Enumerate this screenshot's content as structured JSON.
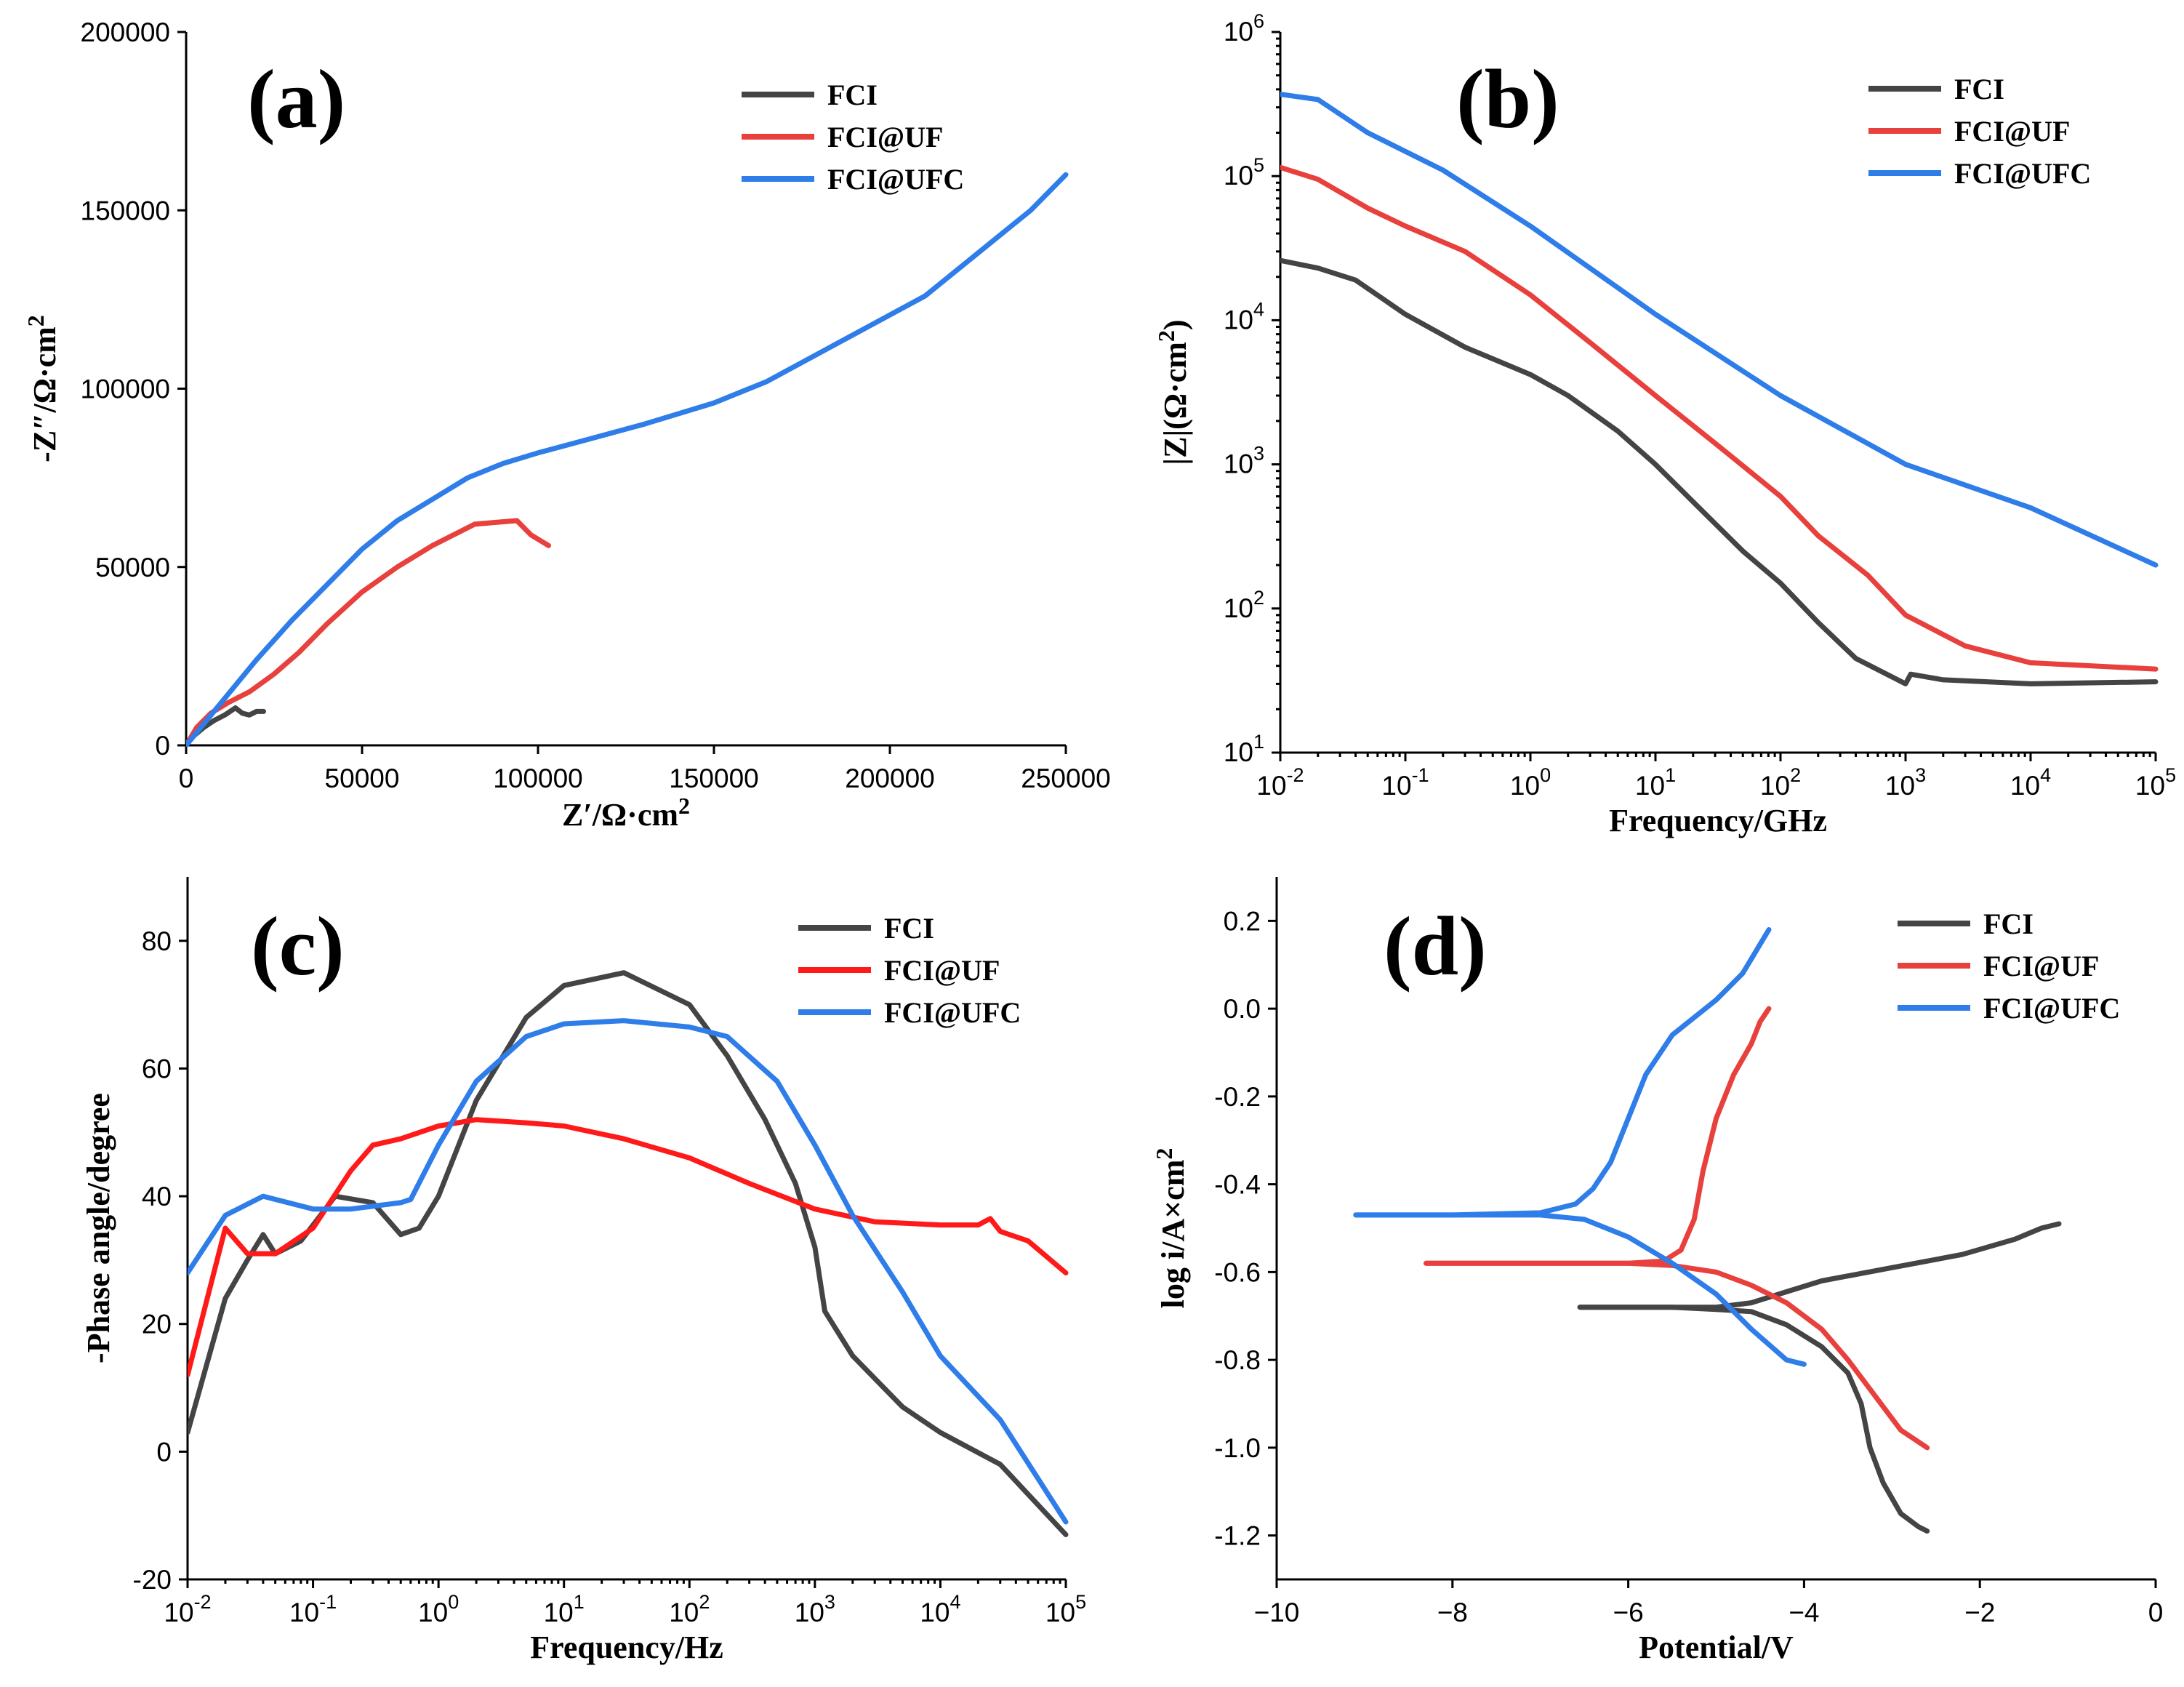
{
  "chart_data": [
    {
      "id": "a",
      "type": "line",
      "panel_label": "(a)",
      "title": "",
      "xlabel": "Z′/Ω·cm2",
      "ylabel": "-Z″/Ω·cm2",
      "xscale": "linear",
      "yscale": "linear",
      "xlim": [
        0,
        250000
      ],
      "ylim": [
        0,
        200000
      ],
      "xticks": [
        0,
        50000,
        100000,
        150000,
        200000,
        250000
      ],
      "yticks": [
        0,
        50000,
        100000,
        150000,
        200000
      ],
      "xtick_labels": [
        "0",
        "50000",
        "100000",
        "150000",
        "200000",
        "250000"
      ],
      "ytick_labels": [
        "0",
        "50000",
        "100000",
        "150000",
        "200000"
      ],
      "legend": "top-right",
      "series": [
        {
          "name": "FCI",
          "color": "#444444",
          "x": [
            0,
            2000,
            5000,
            8000,
            11000,
            14000,
            16000,
            18000,
            20000,
            22000
          ],
          "y": [
            0,
            2500,
            5000,
            7000,
            8500,
            10500,
            9000,
            8500,
            9500,
            9500
          ]
        },
        {
          "name": "FCI@UF",
          "color": "#e8403c",
          "x": [
            0,
            3000,
            7000,
            12000,
            18000,
            25000,
            32000,
            40000,
            50000,
            60000,
            70000,
            82000,
            88000,
            94000,
            98000,
            103000
          ],
          "y": [
            0,
            5000,
            9000,
            12000,
            15000,
            20000,
            26000,
            34000,
            43000,
            50000,
            56000,
            62000,
            62500,
            63000,
            59000,
            56000
          ]
        },
        {
          "name": "FCI@UFC",
          "color": "#2e7de9",
          "x": [
            0,
            5000,
            10000,
            15000,
            20000,
            30000,
            40000,
            50000,
            60000,
            70000,
            80000,
            90000,
            100000,
            115000,
            130000,
            150000,
            165000,
            180000,
            195000,
            210000,
            225000,
            240000,
            250000
          ],
          "y": [
            0,
            6000,
            12000,
            18000,
            24000,
            35000,
            45000,
            55000,
            63000,
            69000,
            75000,
            79000,
            82000,
            86000,
            90000,
            96000,
            102000,
            110000,
            118000,
            126000,
            138000,
            150000,
            160000
          ]
        }
      ]
    },
    {
      "id": "b",
      "type": "line",
      "panel_label": "(b)",
      "title": "",
      "xlabel": "Frequency/GHz",
      "ylabel": "|Z|(Ω·cm2)",
      "xscale": "log",
      "yscale": "log",
      "xlim": [
        0.01,
        100000
      ],
      "ylim": [
        10,
        1000000
      ],
      "xtick_exponents": [
        -2,
        -1,
        0,
        1,
        2,
        3,
        4,
        5
      ],
      "ytick_exponents": [
        1,
        2,
        3,
        4,
        5,
        6
      ],
      "tick_base": "10",
      "legend": "top-right",
      "series": [
        {
          "name": "FCI",
          "color": "#444444",
          "x": [
            0.01,
            0.02,
            0.04,
            0.1,
            0.3,
            1,
            2,
            5,
            10,
            20,
            50,
            100,
            200,
            400,
            1000,
            1100,
            2000,
            10000,
            100000
          ],
          "y": [
            26000,
            23000,
            19000,
            11000,
            6500,
            4200,
            3000,
            1700,
            1000,
            550,
            250,
            150,
            80,
            45,
            30,
            35,
            32,
            30,
            31
          ]
        },
        {
          "name": "FCI@UF",
          "color": "#e8403c",
          "x": [
            0.01,
            0.02,
            0.05,
            0.1,
            0.3,
            1,
            3,
            10,
            30,
            100,
            200,
            500,
            1000,
            3000,
            10000,
            100000
          ],
          "y": [
            115000,
            95000,
            60000,
            45000,
            30000,
            15000,
            7000,
            3000,
            1400,
            600,
            320,
            170,
            90,
            55,
            42,
            38
          ]
        },
        {
          "name": "FCI@UFC",
          "color": "#2e7de9",
          "x": [
            0.01,
            0.02,
            0.05,
            0.2,
            1,
            10,
            100,
            1000,
            10000,
            100000
          ],
          "y": [
            370000,
            340000,
            200000,
            110000,
            45000,
            11000,
            3000,
            1000,
            500,
            200
          ]
        }
      ]
    },
    {
      "id": "c",
      "type": "line",
      "panel_label": "(c)",
      "title": "",
      "xlabel": "Frequency/Hz",
      "ylabel": "-Phase angle/degree",
      "xscale": "log",
      "yscale": "linear",
      "xlim": [
        0.01,
        100000
      ],
      "ylim": [
        -20,
        90
      ],
      "xtick_exponents": [
        -2,
        -1,
        0,
        1,
        2,
        3,
        4,
        5
      ],
      "yticks": [
        -20,
        0,
        20,
        40,
        60,
        80
      ],
      "ytick_labels": [
        "-20",
        "0",
        "20",
        "40",
        "60",
        "80"
      ],
      "tick_base": "10",
      "legend": "top-right",
      "series": [
        {
          "name": "FCI",
          "color": "#444444",
          "x": [
            0.01,
            0.02,
            0.03,
            0.04,
            0.05,
            0.08,
            0.15,
            0.3,
            0.5,
            0.7,
            1,
            2,
            5,
            10,
            30,
            100,
            200,
            400,
            700,
            1000,
            1200,
            2000,
            5000,
            10000,
            30000,
            100000
          ],
          "y": [
            3,
            24,
            30,
            34,
            31,
            33,
            40,
            39,
            34,
            35,
            40,
            55,
            68,
            73,
            75,
            70,
            62,
            52,
            42,
            32,
            22,
            15,
            7,
            3,
            -2,
            -13
          ]
        },
        {
          "name": "FCI@UF",
          "color": "#ff1a1a",
          "x": [
            0.01,
            0.02,
            0.03,
            0.05,
            0.1,
            0.2,
            0.3,
            0.5,
            1,
            2,
            5,
            10,
            30,
            100,
            300,
            1000,
            3000,
            10000,
            20000,
            25000,
            30000,
            50000,
            100000
          ],
          "y": [
            12,
            35,
            31,
            31,
            35,
            44,
            48,
            49,
            51,
            52,
            51.5,
            51,
            49,
            46,
            42,
            38,
            36,
            35.5,
            35.5,
            36.5,
            34.5,
            33,
            28
          ]
        },
        {
          "name": "FCI@UFC",
          "color": "#2e7de9",
          "x": [
            0.01,
            0.02,
            0.04,
            0.1,
            0.2,
            0.5,
            0.6,
            1,
            2,
            5,
            10,
            30,
            100,
            200,
            500,
            1000,
            2000,
            5000,
            10000,
            30000,
            100000
          ],
          "y": [
            28,
            37,
            40,
            38,
            38,
            39,
            39.5,
            48,
            58,
            65,
            67,
            67.5,
            66.5,
            65,
            58,
            48,
            37,
            25,
            15,
            5,
            -11
          ]
        }
      ]
    },
    {
      "id": "d",
      "type": "line",
      "panel_label": "(d)",
      "title": "",
      "xlabel": "Potential/V",
      "ylabel": "log i/A×cm2",
      "xscale": "linear",
      "yscale": "linear",
      "xlim": [
        -10,
        0
      ],
      "ylim": [
        -1.3,
        0.3
      ],
      "xticks": [
        -10,
        -8,
        -6,
        -4,
        -2,
        0
      ],
      "yticks": [
        -1.2,
        -1.0,
        -0.8,
        -0.6,
        -0.4,
        -0.2,
        0.0,
        0.2
      ],
      "xtick_labels": [
        "−10",
        "−8",
        "−6",
        "−4",
        "−2",
        "0"
      ],
      "ytick_labels": [
        "-1.2",
        "-1.0",
        "-0.8",
        "-0.6",
        "-0.4",
        "-0.2",
        "0.0",
        "0.2"
      ],
      "legend": "top-right",
      "series": [
        {
          "name": "FCI",
          "color": "#444444",
          "branches": [
            {
              "x": [
                -6.55,
                -5.5,
                -5.0,
                -4.6,
                -4.2,
                -3.8,
                -3.5,
                -3.35,
                -3.25,
                -3.1,
                -2.9,
                -2.7,
                -2.6
              ],
              "y": [
                -0.68,
                -0.68,
                -0.685,
                -0.69,
                -0.72,
                -0.77,
                -0.83,
                -0.9,
                -1.0,
                -1.08,
                -1.15,
                -1.18,
                -1.19
              ]
            },
            {
              "x": [
                -6.55,
                -5.5,
                -5.0,
                -4.6,
                -4.2,
                -3.8,
                -3.0,
                -2.2,
                -1.6,
                -1.3,
                -1.1
              ],
              "y": [
                -0.68,
                -0.68,
                -0.68,
                -0.67,
                -0.645,
                -0.62,
                -0.59,
                -0.56,
                -0.525,
                -0.5,
                -0.49
              ]
            }
          ]
        },
        {
          "name": "FCI@UF",
          "color": "#e8403c",
          "branches": [
            {
              "x": [
                -8.3,
                -7.0,
                -6.0,
                -5.5,
                -5.0,
                -4.6,
                -4.2,
                -3.8,
                -3.5,
                -3.2,
                -2.9,
                -2.6
              ],
              "y": [
                -0.58,
                -0.58,
                -0.58,
                -0.585,
                -0.6,
                -0.63,
                -0.67,
                -0.73,
                -0.8,
                -0.88,
                -0.96,
                -1.0
              ]
            },
            {
              "x": [
                -8.3,
                -7.0,
                -6.0,
                -5.6,
                -5.4,
                -5.25,
                -5.15,
                -5.0,
                -4.8,
                -4.6,
                -4.5,
                -4.4
              ],
              "y": [
                -0.58,
                -0.58,
                -0.58,
                -0.575,
                -0.55,
                -0.48,
                -0.37,
                -0.25,
                -0.15,
                -0.08,
                -0.03,
                0.0
              ]
            }
          ]
        },
        {
          "name": "FCI@UFC",
          "color": "#2e7de9",
          "branches": [
            {
              "x": [
                -9.1,
                -8.0,
                -7.0,
                -6.5,
                -6.0,
                -5.5,
                -5.0,
                -4.6,
                -4.2,
                -4.0
              ],
              "y": [
                -0.47,
                -0.47,
                -0.47,
                -0.48,
                -0.52,
                -0.58,
                -0.65,
                -0.73,
                -0.8,
                -0.81
              ]
            },
            {
              "x": [
                -9.1,
                -8.0,
                -7.0,
                -6.6,
                -6.4,
                -6.2,
                -6.0,
                -5.8,
                -5.5,
                -5.0,
                -4.7,
                -4.4
              ],
              "y": [
                -0.47,
                -0.47,
                -0.465,
                -0.445,
                -0.41,
                -0.35,
                -0.25,
                -0.15,
                -0.06,
                0.02,
                0.08,
                0.18
              ]
            }
          ]
        }
      ]
    }
  ]
}
